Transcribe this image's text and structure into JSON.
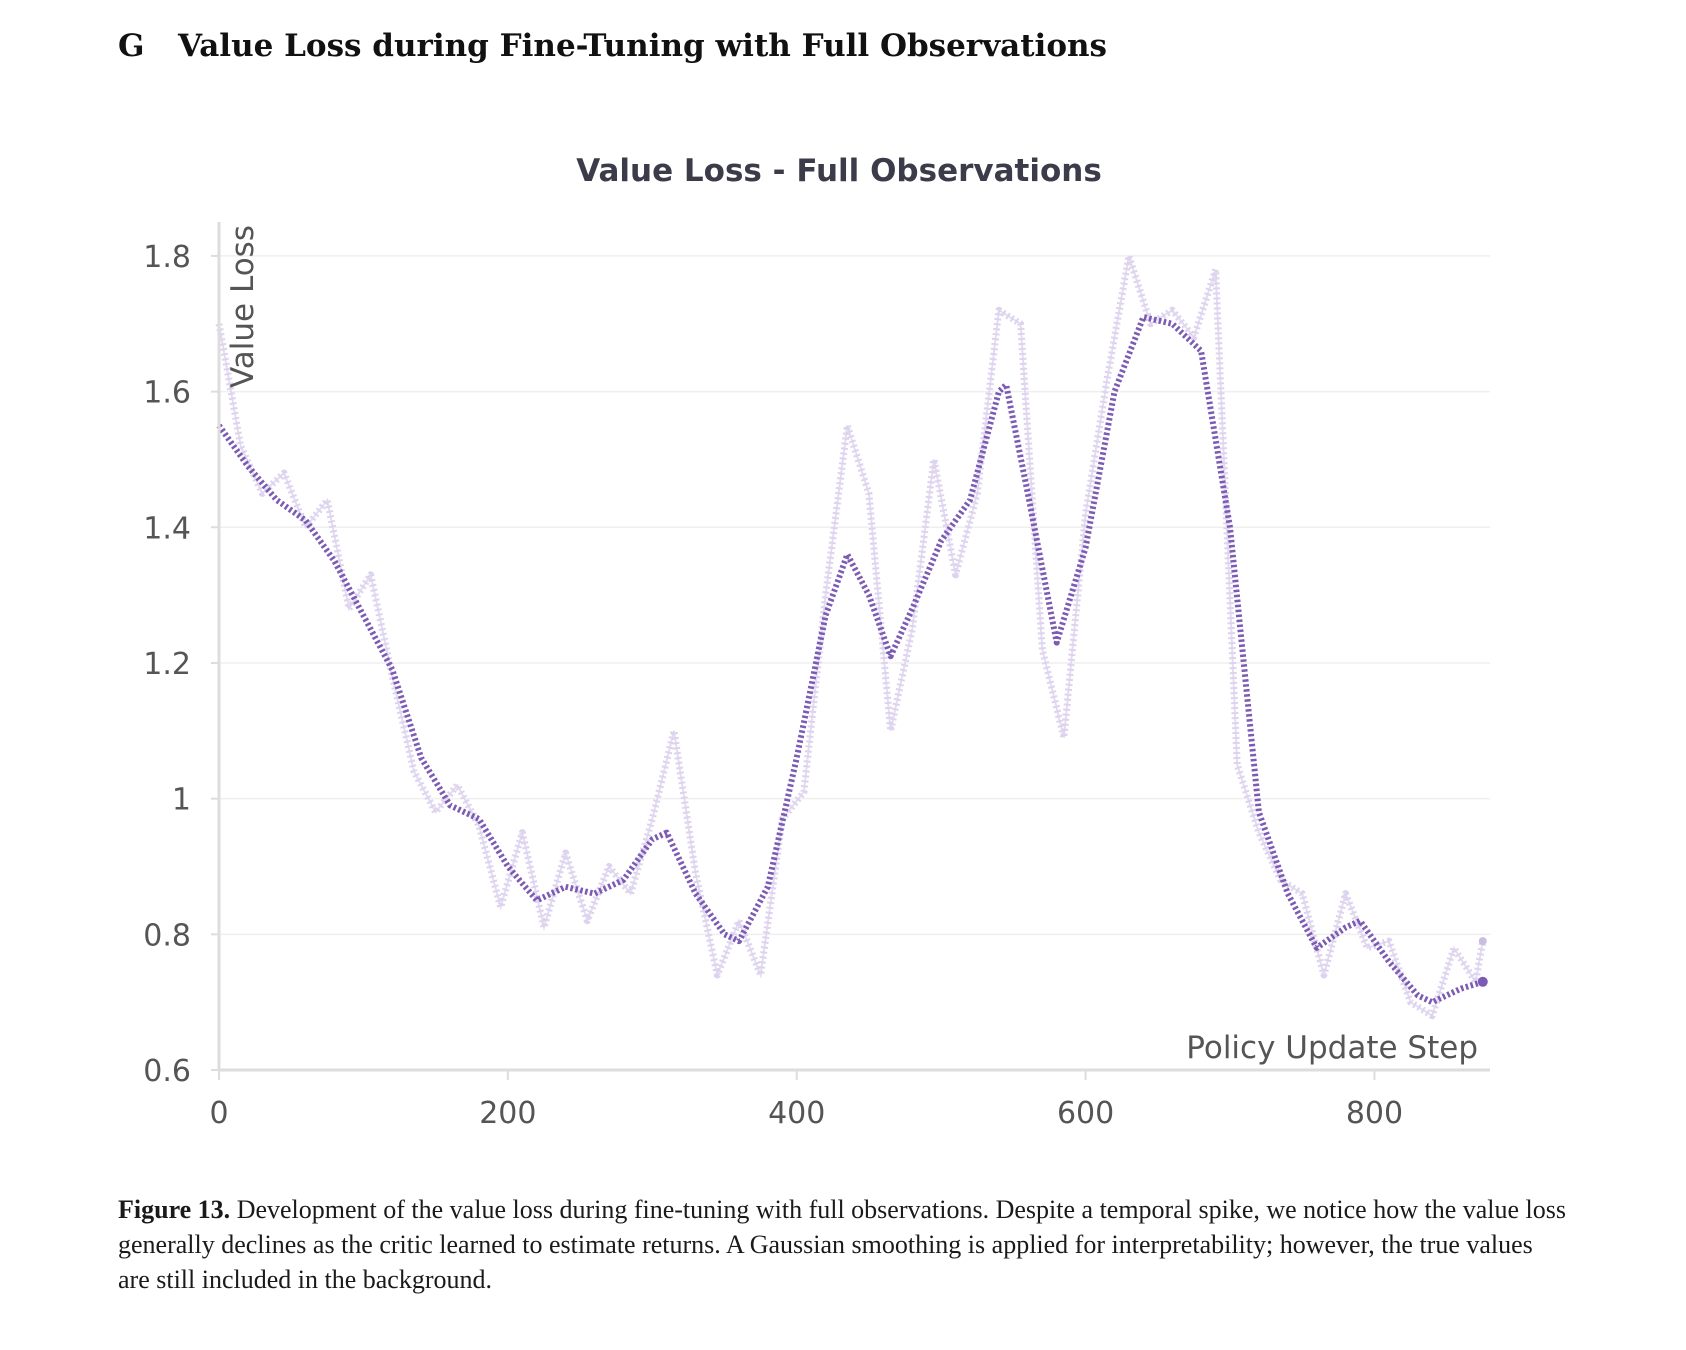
{
  "section": {
    "letter": "G",
    "title": "Value Loss during Fine-Tuning with Full Observations"
  },
  "chart_data": {
    "type": "line",
    "title": "Value Loss - Full Observations",
    "xlabel": "Policy Update Step",
    "ylabel": "Value Loss",
    "xlim": [
      0,
      880
    ],
    "ylim": [
      0.6,
      1.85
    ],
    "x_ticks": [
      0,
      200,
      400,
      600,
      800
    ],
    "y_ticks": [
      0.6,
      0.8,
      1.0,
      1.2,
      1.4,
      1.6,
      1.8
    ],
    "y_tick_labels": [
      "0.6",
      "0.8",
      "1",
      "1.2",
      "1.4",
      "1.6",
      "1.8"
    ],
    "grid": true,
    "colors": {
      "smoothed": "#7b5bb3",
      "raw": "#ddd3ee",
      "axis": "#dddddd",
      "grid": "#efefef",
      "text": "#555555"
    },
    "series": [
      {
        "name": "smoothed",
        "x": [
          0,
          20,
          40,
          60,
          80,
          100,
          120,
          140,
          160,
          180,
          200,
          220,
          240,
          260,
          280,
          300,
          310,
          330,
          350,
          360,
          380,
          400,
          420,
          435,
          450,
          465,
          480,
          500,
          520,
          540,
          545,
          560,
          580,
          600,
          620,
          640,
          660,
          680,
          700,
          720,
          740,
          760,
          780,
          790,
          810,
          830,
          840,
          860,
          875
        ],
        "values": [
          1.55,
          1.49,
          1.44,
          1.41,
          1.35,
          1.27,
          1.19,
          1.06,
          0.99,
          0.97,
          0.9,
          0.85,
          0.87,
          0.86,
          0.88,
          0.94,
          0.95,
          0.86,
          0.8,
          0.79,
          0.87,
          1.06,
          1.27,
          1.36,
          1.3,
          1.21,
          1.28,
          1.38,
          1.44,
          1.6,
          1.61,
          1.45,
          1.23,
          1.37,
          1.6,
          1.71,
          1.7,
          1.66,
          1.4,
          0.98,
          0.86,
          0.78,
          0.81,
          0.82,
          0.76,
          0.71,
          0.7,
          0.72,
          0.73
        ]
      },
      {
        "name": "raw",
        "x": [
          0,
          15,
          30,
          45,
          60,
          75,
          90,
          105,
          120,
          135,
          150,
          165,
          180,
          195,
          210,
          225,
          240,
          255,
          270,
          285,
          300,
          315,
          330,
          345,
          360,
          375,
          390,
          405,
          420,
          435,
          450,
          465,
          480,
          495,
          510,
          525,
          540,
          555,
          570,
          585,
          600,
          615,
          630,
          645,
          660,
          675,
          690,
          705,
          720,
          735,
          750,
          765,
          780,
          795,
          810,
          825,
          840,
          855,
          870,
          875
        ],
        "values": [
          1.7,
          1.52,
          1.45,
          1.48,
          1.4,
          1.44,
          1.28,
          1.33,
          1.18,
          1.04,
          0.98,
          1.02,
          0.96,
          0.84,
          0.95,
          0.81,
          0.92,
          0.82,
          0.9,
          0.86,
          0.97,
          1.1,
          0.89,
          0.74,
          0.82,
          0.74,
          0.97,
          1.01,
          1.3,
          1.55,
          1.45,
          1.1,
          1.25,
          1.5,
          1.33,
          1.45,
          1.72,
          1.7,
          1.22,
          1.09,
          1.42,
          1.62,
          1.8,
          1.7,
          1.72,
          1.68,
          1.78,
          1.05,
          0.95,
          0.88,
          0.86,
          0.74,
          0.86,
          0.78,
          0.79,
          0.7,
          0.68,
          0.78,
          0.73,
          0.79
        ]
      }
    ]
  },
  "caption": {
    "label": "Figure 13.",
    "text": " Development of the value loss during fine-tuning with full observations. Despite a temporal spike, we notice how the value loss generally declines as the critic learned to estimate returns. A Gaussian smoothing is applied for interpretability; however, the true values are still included in the background."
  }
}
